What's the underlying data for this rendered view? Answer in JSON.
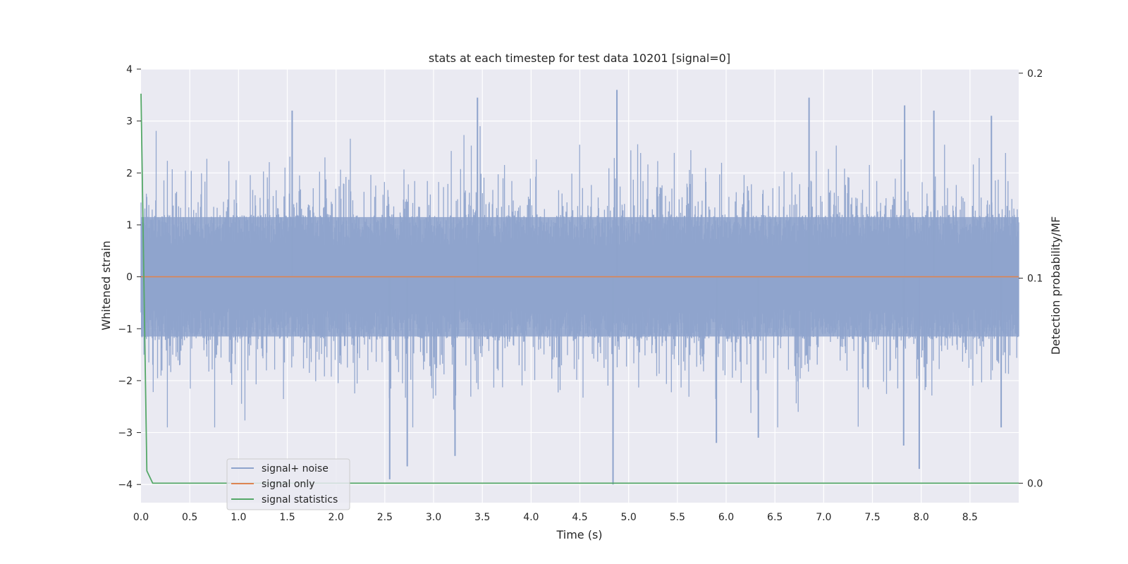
{
  "chart_data": {
    "type": "line",
    "title": "stats at each timestep for test data 10201 [signal=0]",
    "xlabel": "Time (s)",
    "ylabel": "Whitened strain",
    "y2label": "Detection probability/MF",
    "xlim": [
      0.0,
      9.0
    ],
    "ylim": [
      -4.35,
      4.0
    ],
    "y2lim": [
      -0.0095,
      0.202
    ],
    "x_ticks": [
      "0.0",
      "0.5",
      "1.0",
      "1.5",
      "2.0",
      "2.5",
      "3.0",
      "3.5",
      "4.0",
      "4.5",
      "5.0",
      "5.5",
      "6.0",
      "6.5",
      "7.0",
      "7.5",
      "8.0",
      "8.5"
    ],
    "y_ticks": [
      "−4",
      "−3",
      "−2",
      "−1",
      "0",
      "1",
      "2",
      "3",
      "4"
    ],
    "y2_ticks": [
      "0.0",
      "0.1",
      "0.2"
    ],
    "grid": true,
    "legend_position": "lower-left",
    "colors": {
      "background": "#eaeaf2",
      "grid": "#ffffff",
      "noise": "#8ea3cc",
      "signal": "#dd8452",
      "stats": "#55a868"
    },
    "series": [
      {
        "name": "signal+ noise",
        "axis": "left",
        "description_range": [
          -4.0,
          3.6
        ],
        "peaks": [
          {
            "x": 1.55,
            "y": 3.2
          },
          {
            "x": 3.45,
            "y": 3.45
          },
          {
            "x": 4.88,
            "y": 3.6
          },
          {
            "x": 6.85,
            "y": 3.45
          },
          {
            "x": 7.83,
            "y": 3.3
          },
          {
            "x": 8.13,
            "y": 3.2
          },
          {
            "x": 8.72,
            "y": 3.1
          },
          {
            "x": 2.55,
            "y": -3.9
          },
          {
            "x": 2.73,
            "y": -3.65
          },
          {
            "x": 3.22,
            "y": -3.45
          },
          {
            "x": 4.84,
            "y": -4.0
          },
          {
            "x": 5.9,
            "y": -3.2
          },
          {
            "x": 6.33,
            "y": -3.1
          },
          {
            "x": 7.82,
            "y": -3.25
          },
          {
            "x": 7.98,
            "y": -3.7
          },
          {
            "x": 8.82,
            "y": -2.9
          }
        ]
      },
      {
        "name": "signal only",
        "axis": "left",
        "x": [
          0.0,
          9.0
        ],
        "y": [
          0.0,
          0.0
        ]
      },
      {
        "name": "signal statistics",
        "axis": "right",
        "x": [
          0.0,
          0.06,
          0.12,
          9.0
        ],
        "y": [
          0.19,
          0.006,
          0.0,
          0.0
        ]
      }
    ]
  }
}
